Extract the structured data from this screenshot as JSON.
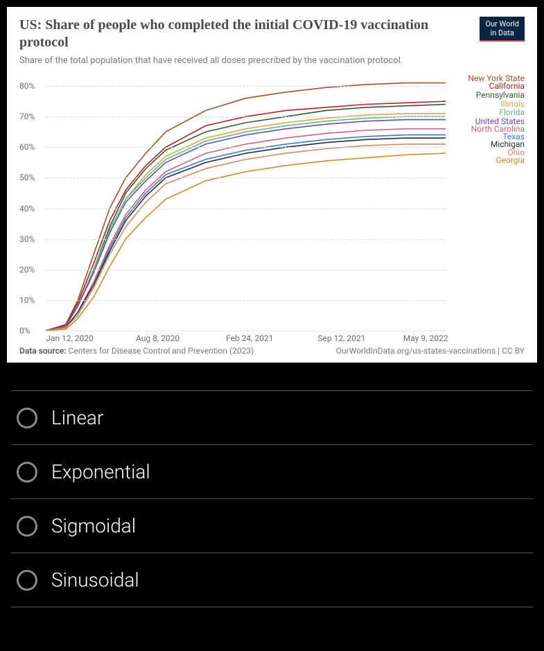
{
  "chart": {
    "badge_line1": "Our World",
    "badge_line2": "in Data",
    "title": "US: Share of people who completed the initial COVID-19 vaccination protocol",
    "subtitle": "Share of the total population that have received all doses prescribed by the vaccination protocol.",
    "type": "line",
    "background_color": "#ffffff",
    "grid_color": "#dddddd",
    "title_color": "#4a4a4a",
    "text_color": "#6b6b6b",
    "ylim": [
      0,
      85
    ],
    "y_ticks": [
      {
        "value": 0,
        "label": "0%"
      },
      {
        "value": 10,
        "label": "10%"
      },
      {
        "value": 20,
        "label": "20%"
      },
      {
        "value": 30,
        "label": "30%"
      },
      {
        "value": 40,
        "label": "40%"
      },
      {
        "value": 50,
        "label": "50%"
      },
      {
        "value": 60,
        "label": "60%"
      },
      {
        "value": 70,
        "label": "70%"
      },
      {
        "value": 80,
        "label": "80%"
      }
    ],
    "x_ticks": [
      {
        "pos": 0.06,
        "label": "Jan 12, 2020"
      },
      {
        "pos": 0.28,
        "label": "Aug 8, 2020"
      },
      {
        "pos": 0.51,
        "label": "Feb 24, 2021"
      },
      {
        "pos": 0.74,
        "label": "Sep 12, 2021"
      },
      {
        "pos": 0.95,
        "label": "May 9, 2022"
      }
    ],
    "series": [
      {
        "name": "New York State",
        "color": "#a0522d",
        "final": 81,
        "legend_y": 0.01,
        "points": [
          [
            0,
            0
          ],
          [
            0.05,
            2
          ],
          [
            0.08,
            10
          ],
          [
            0.12,
            25
          ],
          [
            0.16,
            40
          ],
          [
            0.2,
            50
          ],
          [
            0.25,
            58
          ],
          [
            0.3,
            65
          ],
          [
            0.4,
            72
          ],
          [
            0.5,
            76
          ],
          [
            0.6,
            78
          ],
          [
            0.7,
            79.5
          ],
          [
            0.8,
            80.5
          ],
          [
            0.9,
            81
          ],
          [
            1.0,
            81
          ]
        ]
      },
      {
        "name": "California",
        "color": "#b22222",
        "final": 75,
        "legend_y": 0.04,
        "points": [
          [
            0,
            0
          ],
          [
            0.05,
            2
          ],
          [
            0.08,
            9
          ],
          [
            0.12,
            22
          ],
          [
            0.16,
            36
          ],
          [
            0.2,
            46
          ],
          [
            0.25,
            54
          ],
          [
            0.3,
            60
          ],
          [
            0.4,
            67
          ],
          [
            0.5,
            70
          ],
          [
            0.6,
            72
          ],
          [
            0.7,
            73
          ],
          [
            0.8,
            74
          ],
          [
            0.9,
            74.5
          ],
          [
            1.0,
            75
          ]
        ]
      },
      {
        "name": "Pennsylvania",
        "color": "#2e5c2e",
        "final": 74,
        "legend_y": 0.075,
        "points": [
          [
            0,
            0
          ],
          [
            0.05,
            1.5
          ],
          [
            0.08,
            8
          ],
          [
            0.12,
            20
          ],
          [
            0.16,
            34
          ],
          [
            0.2,
            45
          ],
          [
            0.25,
            53
          ],
          [
            0.3,
            59
          ],
          [
            0.4,
            65
          ],
          [
            0.5,
            68
          ],
          [
            0.6,
            70
          ],
          [
            0.7,
            72
          ],
          [
            0.8,
            73
          ],
          [
            0.9,
            73.5
          ],
          [
            1.0,
            74
          ]
        ]
      },
      {
        "name": "Illinois",
        "color": "#d4a84a",
        "final": 71,
        "legend_y": 0.108,
        "points": [
          [
            0,
            0
          ],
          [
            0.05,
            1.5
          ],
          [
            0.08,
            8
          ],
          [
            0.12,
            20
          ],
          [
            0.16,
            33
          ],
          [
            0.2,
            43
          ],
          [
            0.25,
            51
          ],
          [
            0.3,
            57
          ],
          [
            0.4,
            63
          ],
          [
            0.5,
            66
          ],
          [
            0.6,
            68
          ],
          [
            0.7,
            69.5
          ],
          [
            0.8,
            70.5
          ],
          [
            0.9,
            71
          ],
          [
            1.0,
            71
          ]
        ]
      },
      {
        "name": "Florida",
        "color": "#5eb88f",
        "final": 70,
        "legend_y": 0.14,
        "points": [
          [
            0,
            0
          ],
          [
            0.05,
            1.5
          ],
          [
            0.08,
            8
          ],
          [
            0.12,
            20
          ],
          [
            0.16,
            33
          ],
          [
            0.2,
            43
          ],
          [
            0.25,
            50
          ],
          [
            0.3,
            56
          ],
          [
            0.4,
            62
          ],
          [
            0.5,
            65
          ],
          [
            0.6,
            67
          ],
          [
            0.7,
            68.5
          ],
          [
            0.8,
            69.5
          ],
          [
            0.9,
            70
          ],
          [
            1.0,
            70
          ]
        ]
      },
      {
        "name": "United States",
        "color": "#6a4b9e",
        "final": 69,
        "legend_y": 0.175,
        "points": [
          [
            0,
            0
          ],
          [
            0.05,
            1.5
          ],
          [
            0.08,
            8
          ],
          [
            0.12,
            19
          ],
          [
            0.16,
            32
          ],
          [
            0.2,
            42
          ],
          [
            0.25,
            49
          ],
          [
            0.3,
            55
          ],
          [
            0.4,
            61
          ],
          [
            0.5,
            64
          ],
          [
            0.6,
            66
          ],
          [
            0.7,
            67.5
          ],
          [
            0.8,
            68.5
          ],
          [
            0.9,
            69
          ],
          [
            1.0,
            69
          ]
        ]
      },
      {
        "name": "North Carolina",
        "color": "#c86478",
        "final": 66,
        "legend_y": 0.205,
        "points": [
          [
            0,
            0
          ],
          [
            0.05,
            1
          ],
          [
            0.08,
            6
          ],
          [
            0.12,
            16
          ],
          [
            0.16,
            28
          ],
          [
            0.2,
            38
          ],
          [
            0.25,
            46
          ],
          [
            0.3,
            52
          ],
          [
            0.4,
            58
          ],
          [
            0.5,
            61
          ],
          [
            0.6,
            63
          ],
          [
            0.7,
            64.5
          ],
          [
            0.8,
            65.5
          ],
          [
            0.9,
            66
          ],
          [
            1.0,
            66
          ]
        ]
      },
      {
        "name": "Texas",
        "color": "#3a7bc8",
        "final": 64,
        "legend_y": 0.235,
        "points": [
          [
            0,
            0
          ],
          [
            0.05,
            1
          ],
          [
            0.08,
            6
          ],
          [
            0.12,
            15
          ],
          [
            0.16,
            27
          ],
          [
            0.2,
            37
          ],
          [
            0.25,
            45
          ],
          [
            0.3,
            51
          ],
          [
            0.4,
            56
          ],
          [
            0.5,
            59
          ],
          [
            0.6,
            61
          ],
          [
            0.7,
            62.5
          ],
          [
            0.8,
            63.5
          ],
          [
            0.9,
            64
          ],
          [
            1.0,
            64
          ]
        ]
      },
      {
        "name": "Michigan",
        "color": "#2a2a2a",
        "final": 63,
        "legend_y": 0.265,
        "points": [
          [
            0,
            0
          ],
          [
            0.05,
            1
          ],
          [
            0.08,
            6
          ],
          [
            0.12,
            15
          ],
          [
            0.16,
            26
          ],
          [
            0.2,
            36
          ],
          [
            0.25,
            44
          ],
          [
            0.3,
            50
          ],
          [
            0.4,
            55
          ],
          [
            0.5,
            58
          ],
          [
            0.6,
            60
          ],
          [
            0.7,
            61.5
          ],
          [
            0.8,
            62.5
          ],
          [
            0.9,
            63
          ],
          [
            1.0,
            63
          ]
        ]
      },
      {
        "name": "Ohio",
        "color": "#d4886a",
        "final": 61,
        "legend_y": 0.295,
        "points": [
          [
            0,
            0
          ],
          [
            0.05,
            1
          ],
          [
            0.08,
            5
          ],
          [
            0.12,
            14
          ],
          [
            0.16,
            25
          ],
          [
            0.2,
            34
          ],
          [
            0.25,
            42
          ],
          [
            0.3,
            48
          ],
          [
            0.4,
            53
          ],
          [
            0.5,
            56
          ],
          [
            0.6,
            58
          ],
          [
            0.7,
            59.5
          ],
          [
            0.8,
            60.5
          ],
          [
            0.9,
            61
          ],
          [
            1.0,
            61
          ]
        ]
      },
      {
        "name": "Georgia",
        "color": "#cc8833",
        "final": 58,
        "legend_y": 0.325,
        "points": [
          [
            0,
            0
          ],
          [
            0.05,
            0.5
          ],
          [
            0.08,
            4
          ],
          [
            0.12,
            11
          ],
          [
            0.16,
            21
          ],
          [
            0.2,
            30
          ],
          [
            0.25,
            37
          ],
          [
            0.3,
            43
          ],
          [
            0.4,
            49
          ],
          [
            0.5,
            52
          ],
          [
            0.6,
            54
          ],
          [
            0.7,
            55.5
          ],
          [
            0.8,
            56.5
          ],
          [
            0.9,
            57.5
          ],
          [
            1.0,
            58
          ]
        ]
      }
    ],
    "footer_source_label": "Data source:",
    "footer_source": "Centers for Disease Control and Prevention (2023)",
    "footer_link": "OurWorldInData.org/us-states-vaccinations | CC BY"
  },
  "quiz": {
    "options": [
      {
        "label": "Linear"
      },
      {
        "label": "Exponential"
      },
      {
        "label": "Sigmoidal"
      },
      {
        "label": "Sinusoidal"
      }
    ]
  }
}
